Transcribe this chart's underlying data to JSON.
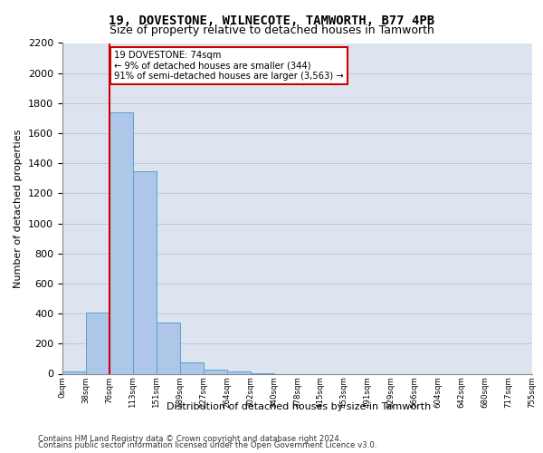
{
  "title1": "19, DOVESTONE, WILNECOTE, TAMWORTH, B77 4PB",
  "title2": "Size of property relative to detached houses in Tamworth",
  "xlabel": "Distribution of detached houses by size in Tamworth",
  "ylabel": "Number of detached properties",
  "bar_values": [
    15,
    405,
    1740,
    1345,
    340,
    75,
    30,
    15,
    5,
    0,
    0,
    0,
    0,
    0,
    0,
    0,
    0,
    0,
    0,
    0
  ],
  "bar_labels": [
    "0sqm",
    "38sqm",
    "76sqm",
    "113sqm",
    "151sqm",
    "189sqm",
    "227sqm",
    "264sqm",
    "302sqm",
    "340sqm",
    "378sqm",
    "415sqm",
    "453sqm",
    "491sqm",
    "529sqm",
    "566sqm",
    "604sqm",
    "642sqm",
    "680sqm",
    "717sqm",
    "755sqm"
  ],
  "bar_color": "#aec6e8",
  "bar_edge_color": "#5a9fd4",
  "red_line_color": "#cc0000",
  "annotation_text_line1": "19 DOVESTONE: 74sqm",
  "annotation_text_line2": "← 9% of detached houses are smaller (344)",
  "annotation_text_line3": "91% of semi-detached houses are larger (3,563) →",
  "annotation_box_facecolor": "#ffffff",
  "annotation_box_edgecolor": "#cc0000",
  "grid_color": "#c0c8d8",
  "background_color": "#dde4f0",
  "ylim_max": 2200,
  "yticks": [
    0,
    200,
    400,
    600,
    800,
    1000,
    1200,
    1400,
    1600,
    1800,
    2000,
    2200
  ],
  "footer1": "Contains HM Land Registry data © Crown copyright and database right 2024.",
  "footer2": "Contains public sector information licensed under the Open Government Licence v3.0."
}
